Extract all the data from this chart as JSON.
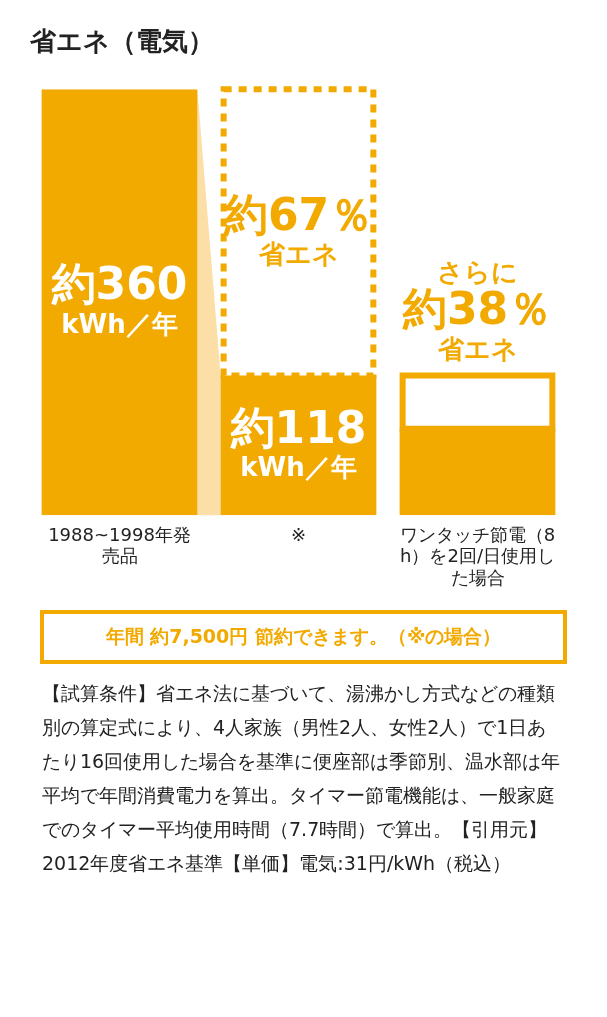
{
  "chart_data": {
    "type": "bar",
    "title": "省エネ（電気）",
    "stacked": true,
    "categories": [
      "1988~1998年発売品",
      "※",
      "ワンタッチ節電（8h）を2回/日使用した場合"
    ],
    "series": [
      {
        "color": "#f2a900",
        "values": [
          360,
          118,
          73
        ],
        "value_labels": [
          "約360kWh／年",
          "約118kWh／年",
          null
        ]
      },
      {
        "color": "#f2a900",
        "line_style": "dashed",
        "values": [
          null,
          242,
          null
        ],
        "value_labels": [
          null,
          "約67％省エネ",
          null
        ]
      },
      {
        "color": "#f2a900",
        "line_style": "solid",
        "values": [
          null,
          null,
          45
        ],
        "value_labels": [
          null,
          null,
          "さらに約38％省エネ"
        ]
      }
    ],
    "annotations": [
      "年間 約7,500円 節約できます。（※の場合）",
      "【試算条件】省エネ法に基づいて、湯沸かし方式などの種類別の算定式により、4人家族（男性2人、女性2人）で1日あたり16回使用した場合を基準に便座部は季節別、温水部は年平均で年間消費電力を算出。タイマー節電機能は、一般家庭でのタイマー平均使用時間（7.7時間）で算出。【引用元】2012年度省エネ基準【単価】電気:31円/kWh（税込）"
    ],
    "grid": false,
    "legend": false
  }
}
